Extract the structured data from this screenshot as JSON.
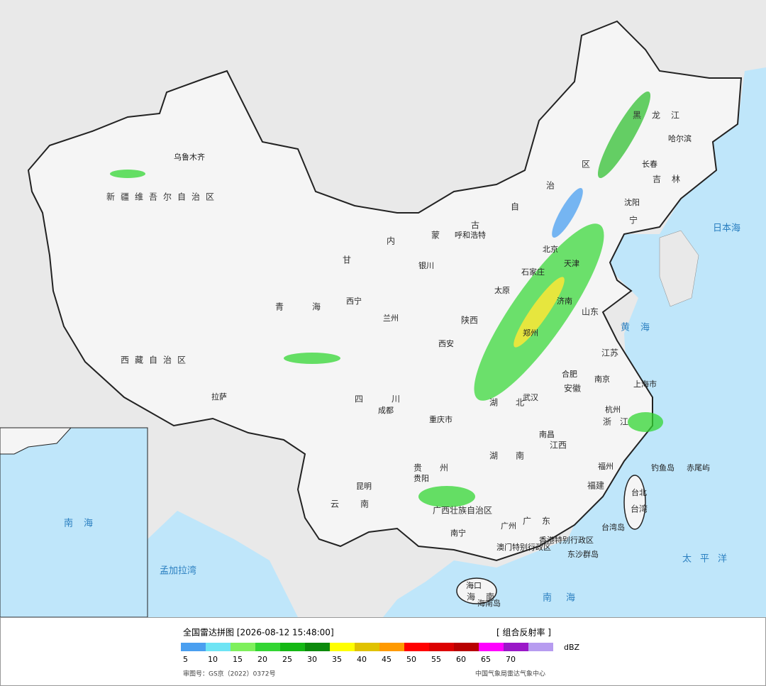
{
  "map": {
    "labels": [
      "乌鲁木齐",
      "新疆维吾尔自治区",
      "西藏自治区",
      "青海",
      "甘",
      "西宁",
      "兰州",
      "拉萨",
      "四川",
      "成都",
      "重庆市",
      "云南",
      "昆明",
      "贵州",
      "贵阳",
      "广西壮族自治区",
      "南宁",
      "广州",
      "广东",
      "香港特别行政区",
      "澳门特别行政区",
      "海口",
      "海南",
      "海南岛",
      "台北",
      "台湾",
      "台湾岛",
      "福州",
      "福建",
      "南昌",
      "江西",
      "杭州",
      "浙江",
      "上海市",
      "南京",
      "江苏",
      "合肥",
      "安徽",
      "武汉",
      "湖北",
      "湖南",
      "西安",
      "陕西",
      "银川",
      "呼和浩特",
      "内",
      "蒙",
      "古",
      "自",
      "治",
      "区",
      "黑龙江",
      "哈尔滨",
      "长春",
      "吉林",
      "沈阳",
      "宁",
      "北京",
      "天津",
      "石家庄",
      "太原",
      "济南",
      "郑州",
      "山东",
      "日本海",
      "黄海",
      "太平洋",
      "南海",
      "孟加拉湾",
      "钓鱼岛",
      "赤尾屿",
      "东沙群岛",
      "南海"
    ]
  },
  "legend": {
    "title": "全国雷达拼图 [2026-08-12 15:48:00]",
    "product": "[ 组合反射率 ]",
    "unit": "dBZ",
    "levels": [
      5,
      10,
      15,
      20,
      25,
      30,
      35,
      40,
      45,
      50,
      55,
      60,
      65,
      70
    ],
    "colors": [
      "#4a9ff0",
      "#6ee4f4",
      "#7ef05c",
      "#33d633",
      "#14b814",
      "#0c8a0c",
      "#ffff00",
      "#e0c200",
      "#ff9a00",
      "#ff0000",
      "#dc0000",
      "#b80000",
      "#ff00ff",
      "#9a18c8",
      "#b79cf0"
    ]
  },
  "footer": {
    "approval": "审图号：GS京（2022）0372号",
    "source": "中国气象局雷达气象中心"
  }
}
